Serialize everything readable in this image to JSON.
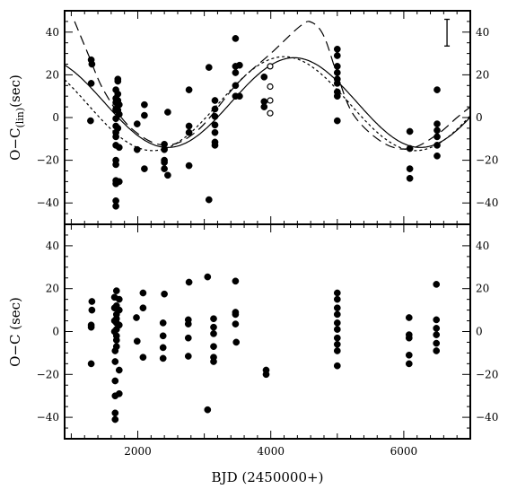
{
  "chart_data": [
    {
      "type": "scatter",
      "panel": "top",
      "ylabel": "O−C",
      "ylabel_sub": "(lin)",
      "ylabel_unit": "(sec)",
      "xlim": [
        900,
        7000
      ],
      "ylim": [
        -50,
        50
      ],
      "y_ticks": [
        -40,
        -20,
        0,
        20,
        40
      ],
      "y_tick_labels": [
        "−40",
        "−20",
        "0",
        "20",
        "40"
      ],
      "x_ticks": [
        2000,
        4000,
        6000
      ],
      "grid": false,
      "error_bar": {
        "x": 6650,
        "y_low": 33.5,
        "y_high": 46
      },
      "series": [
        {
          "marker": "filled-circle",
          "points": [
            [
              1290,
              -1.5
            ],
            [
              1300,
              16
            ],
            [
              1300,
              27
            ],
            [
              1310,
              25
            ],
            [
              1670,
              -41.5
            ],
            [
              1670,
              -39
            ],
            [
              1670,
              -31
            ],
            [
              1670,
              -29.5
            ],
            [
              1670,
              -22
            ],
            [
              1670,
              -20
            ],
            [
              1670,
              -13
            ],
            [
              1670,
              -9
            ],
            [
              1670,
              -7
            ],
            [
              1670,
              -4
            ],
            [
              1670,
              -0.5
            ],
            [
              1670,
              3.5
            ],
            [
              1670,
              4
            ],
            [
              1670,
              7
            ],
            [
              1670,
              9
            ],
            [
              1670,
              13
            ],
            [
              1700,
              -5
            ],
            [
              1700,
              3.5
            ],
            [
              1700,
              8
            ],
            [
              1700,
              11
            ],
            [
              1700,
              17
            ],
            [
              1700,
              18
            ],
            [
              1720,
              -30
            ],
            [
              1720,
              -14
            ],
            [
              1720,
              1.5
            ],
            [
              1720,
              6
            ],
            [
              1990,
              -15
            ],
            [
              1990,
              -3
            ],
            [
              2100,
              -24
            ],
            [
              2100,
              1
            ],
            [
              2100,
              6
            ],
            [
              2400,
              -15
            ],
            [
              2400,
              -12.5
            ],
            [
              2400,
              -20
            ],
            [
              2400,
              -21
            ],
            [
              2400,
              -24
            ],
            [
              2450,
              -27
            ],
            [
              2450,
              2.5
            ],
            [
              2770,
              -22.5
            ],
            [
              2770,
              -7
            ],
            [
              2770,
              -4
            ],
            [
              2770,
              13
            ],
            [
              3070,
              -38.5
            ],
            [
              3070,
              23.5
            ],
            [
              3160,
              -11.5
            ],
            [
              3160,
              -7
            ],
            [
              3160,
              -3.5
            ],
            [
              3160,
              0.5
            ],
            [
              3160,
              4
            ],
            [
              3160,
              8
            ],
            [
              3160,
              -13
            ],
            [
              3470,
              10
            ],
            [
              3470,
              15
            ],
            [
              3470,
              21
            ],
            [
              3470,
              24
            ],
            [
              3470,
              37
            ],
            [
              3530,
              24.5
            ],
            [
              3530,
              10
            ],
            [
              3900,
              5
            ],
            [
              3900,
              7.5
            ],
            [
              3900,
              19
            ],
            [
              5000,
              -1.5
            ],
            [
              5000,
              10
            ],
            [
              5000,
              12
            ],
            [
              5000,
              16
            ],
            [
              5000,
              18
            ],
            [
              5000,
              21
            ],
            [
              5000,
              24
            ],
            [
              5000,
              29
            ],
            [
              5000,
              32
            ],
            [
              6090,
              -14.5
            ],
            [
              6090,
              -24
            ],
            [
              6090,
              -28.5
            ],
            [
              6090,
              -6.5
            ],
            [
              6500,
              -18
            ],
            [
              6500,
              -13
            ],
            [
              6500,
              -9
            ],
            [
              6500,
              -6
            ],
            [
              6500,
              -3
            ],
            [
              6500,
              13
            ]
          ]
        },
        {
          "marker": "open-circle",
          "points": [
            [
              3990,
              24
            ],
            [
              3990,
              14.5
            ],
            [
              3990,
              8
            ],
            [
              3990,
              2
            ]
          ]
        }
      ],
      "curves": [
        {
          "style": "solid",
          "offset": 7,
          "amplitude": 21,
          "period": 3800,
          "phase_date": 4350
        },
        {
          "style": "dotted",
          "offset": 6.5,
          "amplitude": 22,
          "period": 3950,
          "phase_date": 4200
        },
        {
          "style": "dashed",
          "shape": "spline",
          "points": [
            [
              1050,
              45
            ],
            [
              1250,
              30
            ],
            [
              1500,
              12
            ],
            [
              1900,
              -5
            ],
            [
              2400,
              -13
            ],
            [
              2900,
              -6
            ],
            [
              3500,
              16
            ],
            [
              4000,
              30
            ],
            [
              4450,
              43
            ],
            [
              4620,
              44.5
            ],
            [
              4800,
              38
            ],
            [
              5000,
              20
            ],
            [
              5250,
              1
            ],
            [
              5700,
              -12
            ],
            [
              6100,
              -14.5
            ],
            [
              6500,
              -8
            ],
            [
              6800,
              0
            ],
            [
              7000,
              5
            ]
          ]
        }
      ]
    },
    {
      "type": "scatter",
      "panel": "bottom",
      "xlabel": "BJD (2450000+)",
      "ylabel": "O−C (sec)",
      "xlim": [
        900,
        7000
      ],
      "ylim": [
        -50,
        50
      ],
      "y_ticks": [
        -40,
        -20,
        0,
        20,
        40
      ],
      "y_tick_labels": [
        "−40",
        "−20",
        "0",
        "20",
        "40"
      ],
      "x_ticks": [
        2000,
        4000,
        6000
      ],
      "x_tick_labels": [
        "2000",
        "4000",
        "6000"
      ],
      "grid": false,
      "series": [
        {
          "marker": "filled-circle",
          "points": [
            [
              1300,
              -15
            ],
            [
              1300,
              2
            ],
            [
              1300,
              3
            ],
            [
              1310,
              10
            ],
            [
              1310,
              14
            ],
            [
              1650,
              16
            ],
            [
              1650,
              11
            ],
            [
              1650,
              5
            ],
            [
              1650,
              0
            ],
            [
              1660,
              -41
            ],
            [
              1660,
              -38
            ],
            [
              1660,
              -30
            ],
            [
              1660,
              -23
            ],
            [
              1660,
              -14
            ],
            [
              1660,
              -9
            ],
            [
              1680,
              -7
            ],
            [
              1680,
              -4
            ],
            [
              1680,
              -2
            ],
            [
              1680,
              1
            ],
            [
              1680,
              4
            ],
            [
              1680,
              6
            ],
            [
              1680,
              8
            ],
            [
              1680,
              12
            ],
            [
              1680,
              19
            ],
            [
              1720,
              -29
            ],
            [
              1720,
              -18
            ],
            [
              1720,
              3
            ],
            [
              1720,
              10
            ],
            [
              1720,
              15
            ],
            [
              1980,
              6.5
            ],
            [
              1990,
              -4.5
            ],
            [
              2080,
              18
            ],
            [
              2080,
              11
            ],
            [
              2080,
              -12
            ],
            [
              2380,
              -12.5
            ],
            [
              2380,
              -7.5
            ],
            [
              2380,
              -2
            ],
            [
              2380,
              4
            ],
            [
              2400,
              17.5
            ],
            [
              2760,
              -11.5
            ],
            [
              2760,
              -3
            ],
            [
              2760,
              3.5
            ],
            [
              2760,
              5.5
            ],
            [
              2770,
              23
            ],
            [
              3050,
              25.5
            ],
            [
              3050,
              -36.5
            ],
            [
              3140,
              -14
            ],
            [
              3140,
              -12
            ],
            [
              3140,
              -7
            ],
            [
              3140,
              -1
            ],
            [
              3140,
              2
            ],
            [
              3140,
              6
            ],
            [
              3470,
              23.5
            ],
            [
              3470,
              9
            ],
            [
              3470,
              8
            ],
            [
              3470,
              3.5
            ],
            [
              3480,
              -5
            ],
            [
              3930,
              -18
            ],
            [
              3930,
              -20
            ],
            [
              5000,
              18
            ],
            [
              5000,
              15
            ],
            [
              5000,
              11
            ],
            [
              5000,
              8
            ],
            [
              5000,
              4
            ],
            [
              5000,
              1
            ],
            [
              5000,
              -3
            ],
            [
              5000,
              -6
            ],
            [
              5000,
              -9
            ],
            [
              5000,
              -16
            ],
            [
              6080,
              6.5
            ],
            [
              6080,
              -1.5
            ],
            [
              6080,
              -3
            ],
            [
              6080,
              -11
            ],
            [
              6080,
              -15
            ],
            [
              6490,
              22
            ],
            [
              6490,
              5.5
            ],
            [
              6490,
              1.5
            ],
            [
              6490,
              -1.5
            ],
            [
              6490,
              -5.5
            ],
            [
              6490,
              -9
            ]
          ]
        }
      ]
    }
  ]
}
